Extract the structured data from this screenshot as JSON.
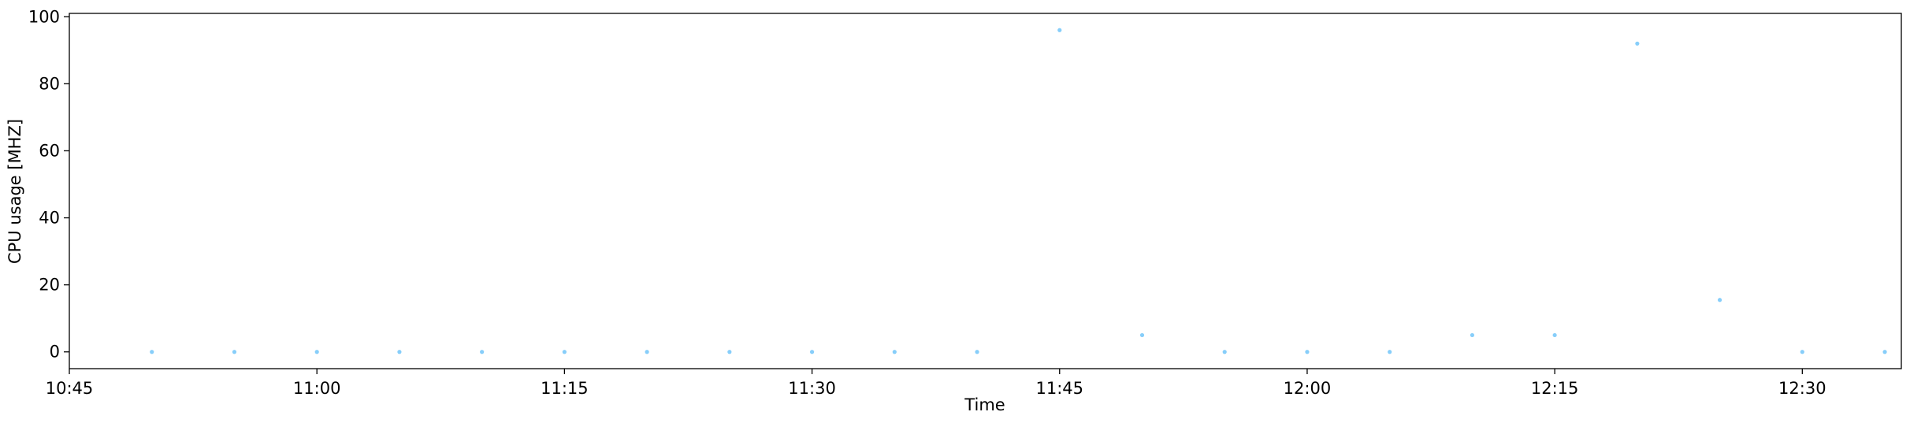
{
  "chart_data": {
    "type": "scatter",
    "title": "",
    "xlabel": "Time",
    "ylabel": "CPU usage [MHZ]",
    "xlim": [
      "10:45",
      "12:36"
    ],
    "ylim": [
      -5,
      101
    ],
    "grid": false,
    "x_ticks": [
      "10:45",
      "11:00",
      "11:15",
      "11:30",
      "11:45",
      "12:00",
      "12:15",
      "12:30"
    ],
    "y_ticks": [
      0,
      20,
      40,
      60,
      80,
      100
    ],
    "point_color": "#87cefa",
    "points": [
      {
        "x": "10:50",
        "y": 0
      },
      {
        "x": "10:55",
        "y": 0
      },
      {
        "x": "11:00",
        "y": 0
      },
      {
        "x": "11:05",
        "y": 0
      },
      {
        "x": "11:10",
        "y": 0
      },
      {
        "x": "11:15",
        "y": 0
      },
      {
        "x": "11:20",
        "y": 0
      },
      {
        "x": "11:25",
        "y": 0
      },
      {
        "x": "11:30",
        "y": 0
      },
      {
        "x": "11:35",
        "y": 0
      },
      {
        "x": "11:40",
        "y": 0
      },
      {
        "x": "11:45",
        "y": 96
      },
      {
        "x": "11:50",
        "y": 5
      },
      {
        "x": "11:55",
        "y": 0
      },
      {
        "x": "12:00",
        "y": 0
      },
      {
        "x": "12:05",
        "y": 0
      },
      {
        "x": "12:10",
        "y": 5
      },
      {
        "x": "12:15",
        "y": 5
      },
      {
        "x": "12:20",
        "y": 92
      },
      {
        "x": "12:25",
        "y": 15.5
      },
      {
        "x": "12:30",
        "y": 0
      },
      {
        "x": "12:35",
        "y": 0
      }
    ]
  }
}
